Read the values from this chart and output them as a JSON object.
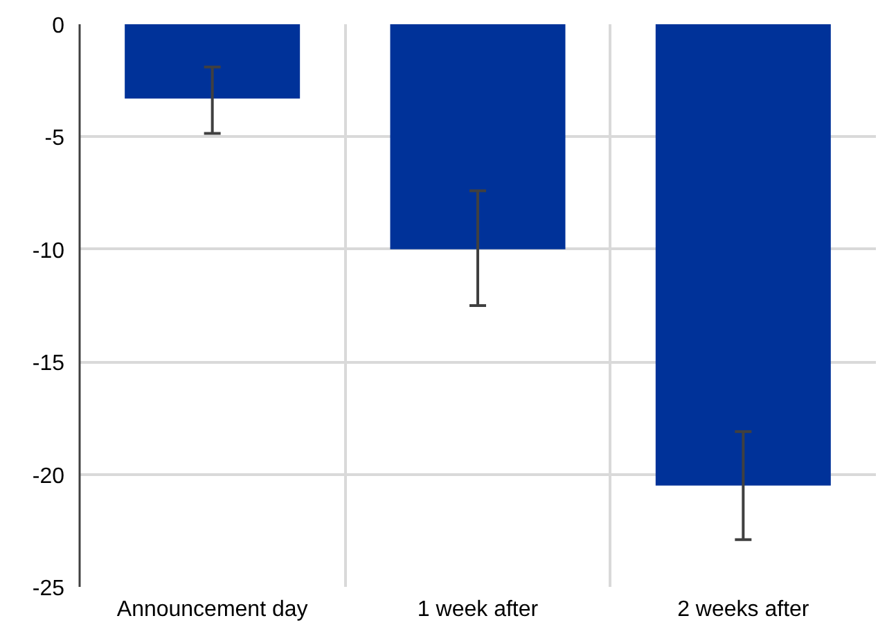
{
  "chart_data": {
    "type": "bar",
    "categories": [
      "Announcement day",
      "1 week after",
      "2 weeks after"
    ],
    "values": [
      -3.3,
      -10,
      -20.5
    ],
    "color": "#003299",
    "errors": [
      [
        -4.85,
        -1.9
      ],
      [
        -12.5,
        -7.4
      ],
      [
        -22.9,
        -18.1
      ]
    ],
    "ylim": [
      -25,
      0
    ],
    "yticks": [
      -25,
      -20,
      -15,
      -10,
      -5,
      0
    ],
    "grid": true
  }
}
